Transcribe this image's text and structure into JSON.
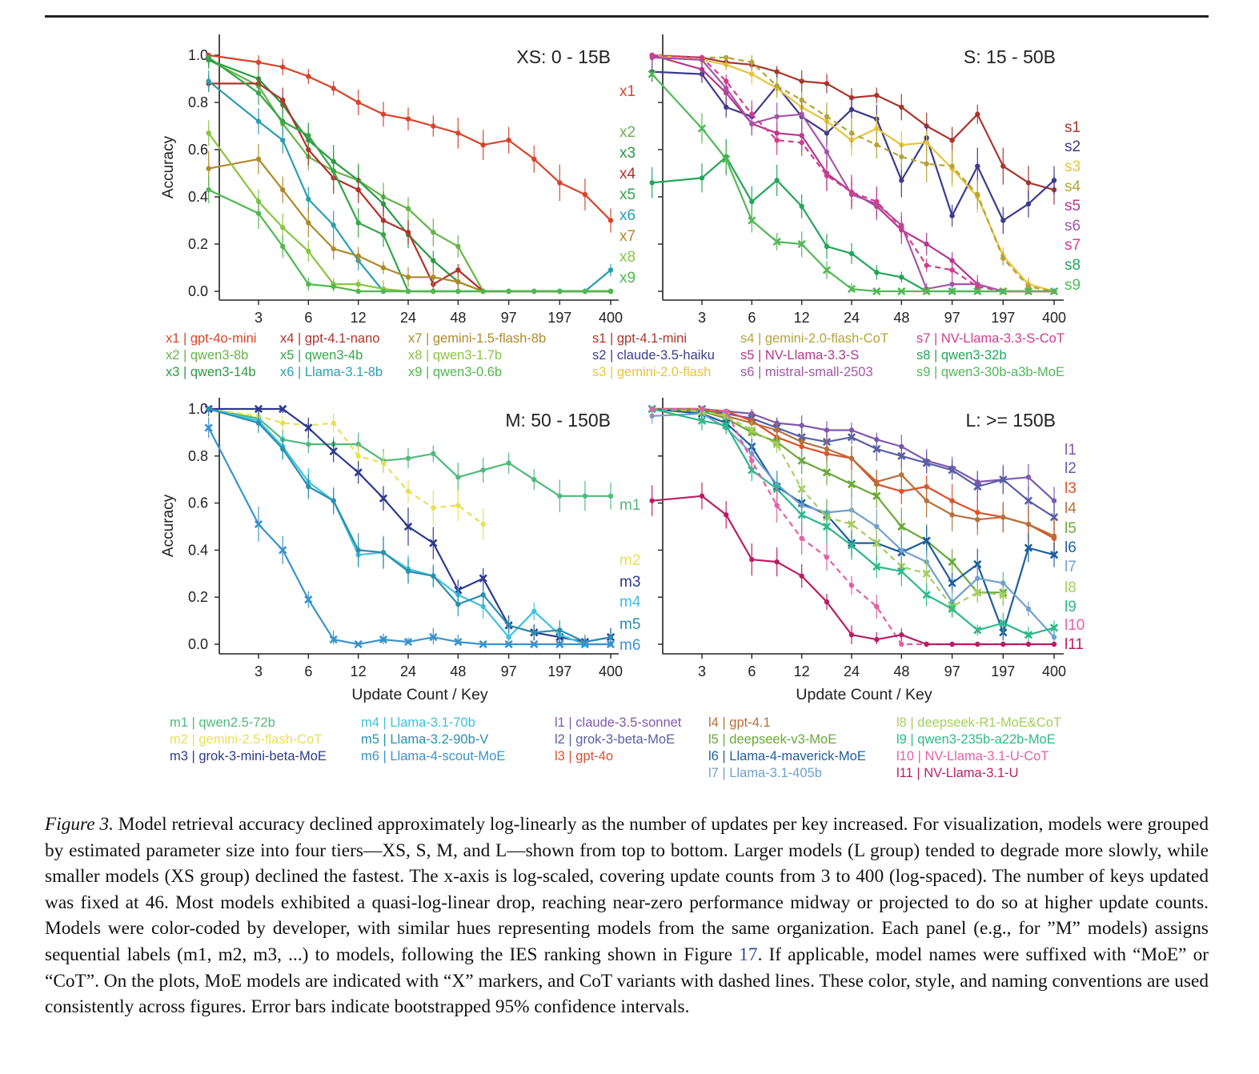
{
  "x_ticks": [
    "3",
    "6",
    "12",
    "24",
    "48",
    "97",
    "197",
    "400"
  ],
  "y_ticks": [
    "0.0",
    "0.2",
    "0.4",
    "0.6",
    "0.8",
    "1.0"
  ],
  "ylabel": "Accuracy",
  "xlabel": "Update Count / Key",
  "chart_data": [
    {
      "type": "line",
      "title": "XS: 0 - 15B",
      "x": [
        1.5,
        3,
        4.2,
        6,
        8.5,
        12,
        17,
        24,
        34,
        48,
        68,
        97,
        138,
        197,
        280,
        400
      ],
      "ylim": [
        0,
        1
      ],
      "x_scale": "log",
      "series": [
        {
          "label": "x1",
          "name": "gpt-4o-mini",
          "color": "#d9432b",
          "marker": "dot",
          "dashed": false,
          "values": [
            1.0,
            0.97,
            0.95,
            0.91,
            0.86,
            0.8,
            0.75,
            0.73,
            0.7,
            0.67,
            0.62,
            0.64,
            0.56,
            0.46,
            0.41,
            0.3
          ]
        },
        {
          "label": "x2",
          "name": "qwen3-8b",
          "color": "#67b34a",
          "marker": "dot",
          "dashed": false,
          "values": [
            0.98,
            0.87,
            0.71,
            0.57,
            0.51,
            0.47,
            0.4,
            0.35,
            0.25,
            0.19,
            0.0,
            0.0,
            0.0,
            0.0,
            0.0,
            0.0
          ]
        },
        {
          "label": "x3",
          "name": "qwen3-14b",
          "color": "#2a9a43",
          "marker": "dot",
          "dashed": false,
          "values": [
            0.98,
            0.9,
            0.79,
            0.64,
            0.55,
            0.47,
            0.37,
            0.24,
            0.13,
            0.04,
            0.0,
            0.0,
            0.0,
            0.0,
            0.0,
            0.0
          ]
        },
        {
          "label": "x4",
          "name": "gpt-4.1-nano",
          "color": "#b2312b",
          "marker": "dot",
          "dashed": false,
          "values": [
            0.88,
            0.88,
            0.81,
            0.6,
            0.48,
            0.43,
            0.3,
            0.25,
            0.03,
            0.09,
            0.0,
            0.0,
            0.0,
            0.0,
            0.0,
            0.0
          ]
        },
        {
          "label": "x5",
          "name": "qwen3-4b",
          "color": "#36a64a",
          "marker": "dot",
          "dashed": false,
          "values": [
            0.99,
            0.84,
            0.72,
            0.66,
            0.51,
            0.29,
            0.24,
            0.0,
            0.0,
            0.0,
            0.0,
            0.0,
            0.0,
            0.0,
            0.0,
            0.0
          ]
        },
        {
          "label": "x6",
          "name": "Llama-3.1-8b",
          "color": "#2a9fb0",
          "marker": "dot",
          "dashed": false,
          "values": [
            0.89,
            0.72,
            0.64,
            0.39,
            0.28,
            0.13,
            0.0,
            0.0,
            0.0,
            0.0,
            0.0,
            0.0,
            0.0,
            0.0,
            0.0,
            0.09
          ]
        },
        {
          "label": "x7",
          "name": "gemini-1.5-flash-8b",
          "color": "#b08a2a",
          "marker": "dot",
          "dashed": false,
          "values": [
            0.52,
            0.56,
            0.43,
            0.29,
            0.18,
            0.15,
            0.1,
            0.06,
            0.06,
            0.04,
            0.0,
            0.0,
            0.0,
            0.0,
            0.0,
            0.0
          ]
        },
        {
          "label": "x8",
          "name": "qwen3-1.7b",
          "color": "#88c542",
          "marker": "dot",
          "dashed": false,
          "values": [
            0.67,
            0.38,
            0.27,
            0.17,
            0.03,
            0.03,
            0.01,
            0.0,
            0.0,
            0.0,
            0.0,
            0.0,
            0.0,
            0.0,
            0.0,
            0.0
          ]
        },
        {
          "label": "x9",
          "name": "qwen3-0.6b",
          "color": "#4fb84e",
          "marker": "dot",
          "dashed": false,
          "values": [
            0.43,
            0.33,
            0.19,
            0.03,
            0.02,
            0.0,
            0.0,
            0.0,
            0.0,
            0.0,
            0.0,
            0.0,
            0.0,
            0.0,
            0.0,
            0.0
          ]
        }
      ]
    },
    {
      "type": "line",
      "title": "S: 15 - 50B",
      "x": [
        1.5,
        3,
        4.2,
        6,
        8.5,
        12,
        17,
        24,
        34,
        48,
        68,
        97,
        138,
        197,
        280,
        400
      ],
      "ylim": [
        0,
        1
      ],
      "x_scale": "log",
      "series": [
        {
          "label": "s1",
          "name": "gpt-4.1-mini",
          "color": "#a8362b",
          "marker": "dot",
          "dashed": false,
          "values": [
            1.0,
            0.99,
            0.97,
            0.96,
            0.93,
            0.89,
            0.88,
            0.82,
            0.83,
            0.78,
            0.7,
            0.64,
            0.75,
            0.53,
            0.46,
            0.43
          ]
        },
        {
          "label": "s2",
          "name": "claude-3.5-haiku",
          "color": "#3d3b8e",
          "marker": "dot",
          "dashed": false,
          "values": [
            0.93,
            0.92,
            0.78,
            0.74,
            0.87,
            0.74,
            0.67,
            0.77,
            0.73,
            0.47,
            0.65,
            0.32,
            0.53,
            0.3,
            0.37,
            0.47
          ]
        },
        {
          "label": "s3",
          "name": "gemini-2.0-flash",
          "color": "#e8c43a",
          "marker": "dot",
          "dashed": false,
          "values": [
            1.0,
            0.98,
            0.96,
            0.92,
            0.86,
            0.78,
            0.72,
            0.64,
            0.69,
            0.62,
            0.63,
            0.52,
            0.4,
            0.15,
            0.03,
            0.0
          ]
        },
        {
          "label": "s4",
          "name": "gemini-2.0-flash-CoT",
          "color": "#b5a33a",
          "marker": "dot",
          "dashed": true,
          "values": [
            1.0,
            0.99,
            0.99,
            0.97,
            0.87,
            0.81,
            0.74,
            0.67,
            0.62,
            0.57,
            0.54,
            0.53,
            0.41,
            0.14,
            0.02,
            0.0
          ]
        },
        {
          "label": "s5",
          "name": "NV-Llama-3.3-S",
          "color": "#b5368f",
          "marker": "dot",
          "dashed": false,
          "values": [
            1.0,
            0.94,
            0.84,
            0.71,
            0.67,
            0.66,
            0.5,
            0.42,
            0.36,
            0.26,
            0.2,
            0.13,
            0.03,
            0.0,
            0.0,
            0.0
          ]
        },
        {
          "label": "s6",
          "name": "mistral-small-2503",
          "color": "#a555a8",
          "marker": "dot",
          "dashed": false,
          "values": [
            0.99,
            0.98,
            0.86,
            0.71,
            0.74,
            0.75,
            0.59,
            0.41,
            0.37,
            0.28,
            0.01,
            0.03,
            0.03,
            0.0,
            0.0,
            0.0
          ]
        },
        {
          "label": "s7",
          "name": "NV-Llama-3.3-S-CoT",
          "color": "#cf3e8e",
          "marker": "dot",
          "dashed": true,
          "values": [
            1.0,
            0.99,
            0.89,
            0.75,
            0.64,
            0.63,
            0.49,
            0.42,
            0.38,
            0.27,
            0.11,
            0.09,
            0.02,
            0.0,
            0.0,
            0.0
          ]
        },
        {
          "label": "s8",
          "name": "qwen3-32b",
          "color": "#23a55a",
          "marker": "dot",
          "dashed": false,
          "values": [
            0.46,
            0.48,
            0.57,
            0.38,
            0.47,
            0.36,
            0.19,
            0.16,
            0.08,
            0.06,
            0.0,
            0.0,
            0.0,
            0.0,
            0.0,
            0.0
          ]
        },
        {
          "label": "s9",
          "name": "qwen3-30b-a3b-MoE",
          "color": "#52b957",
          "marker": "x",
          "dashed": false,
          "values": [
            0.92,
            0.69,
            0.56,
            0.3,
            0.21,
            0.2,
            0.09,
            0.01,
            0.0,
            0.0,
            0.0,
            0.0,
            0.0,
            0.0,
            0.0,
            0.0
          ]
        }
      ]
    },
    {
      "type": "line",
      "title": "M: 50 - 150B",
      "x": [
        1.5,
        3,
        4.2,
        6,
        8.5,
        12,
        17,
        24,
        34,
        48,
        68,
        97,
        138,
        197,
        280,
        400
      ],
      "ylim": [
        0,
        1
      ],
      "x_scale": "log",
      "series": [
        {
          "label": "m1",
          "name": "qwen2.5-72b",
          "color": "#4fba7c",
          "marker": "dot",
          "dashed": false,
          "values": [
            1.0,
            0.96,
            0.87,
            0.85,
            0.85,
            0.85,
            0.78,
            0.79,
            0.81,
            0.71,
            0.74,
            0.77,
            0.7,
            0.63,
            0.63,
            0.63
          ]
        },
        {
          "label": "m2",
          "name": "gemini-2.5-flash-CoT",
          "color": "#e9df56",
          "marker": "dot",
          "dashed": true,
          "values": [
            1.0,
            0.97,
            0.94,
            0.93,
            0.94,
            0.8,
            0.77,
            0.65,
            0.58,
            0.59,
            0.51,
            null,
            null,
            null,
            null,
            null
          ]
        },
        {
          "label": "m3",
          "name": "grok-3-mini-beta-MoE",
          "color": "#2c3a8f",
          "marker": "x",
          "dashed": false,
          "values": [
            1.0,
            1.0,
            1.0,
            0.92,
            0.82,
            0.73,
            0.62,
            0.5,
            0.43,
            0.23,
            0.28,
            0.08,
            0.05,
            0.03,
            0.01,
            0.03
          ]
        },
        {
          "label": "m4",
          "name": "Llama-3.1-70b",
          "color": "#3ec2dd",
          "marker": "dot",
          "dashed": false,
          "values": [
            1.0,
            0.95,
            0.84,
            0.69,
            0.61,
            0.38,
            0.39,
            0.32,
            0.29,
            0.21,
            0.16,
            0.03,
            0.14,
            0.04,
            0.0,
            0.0
          ]
        },
        {
          "label": "m5",
          "name": "Llama-3.2-90b-V",
          "color": "#2a8fb0",
          "marker": "dot",
          "dashed": false,
          "values": [
            1.0,
            0.94,
            0.83,
            0.67,
            0.61,
            0.4,
            0.39,
            0.31,
            0.29,
            0.17,
            0.21,
            0.08,
            0.05,
            0.06,
            0.01,
            0.03
          ]
        },
        {
          "label": "m6",
          "name": "Llama-4-scout-MoE",
          "color": "#3a93cc",
          "marker": "x",
          "dashed": false,
          "values": [
            0.92,
            0.51,
            0.4,
            0.19,
            0.02,
            0.0,
            0.02,
            0.01,
            0.03,
            0.01,
            0.0,
            0.0,
            0.0,
            0.0,
            0.0,
            0.0
          ]
        }
      ]
    },
    {
      "type": "line",
      "title": "L: >= 150B",
      "x": [
        1.5,
        3,
        4.2,
        6,
        8.5,
        12,
        17,
        24,
        34,
        48,
        68,
        97,
        138,
        197,
        280,
        400
      ],
      "ylim": [
        0,
        1
      ],
      "x_scale": "log",
      "series": [
        {
          "label": "l1",
          "name": "claude-3.5-sonnet",
          "color": "#8059ad",
          "marker": "dot",
          "dashed": false,
          "values": [
            1.0,
            1.0,
            0.99,
            0.98,
            0.94,
            0.93,
            0.91,
            0.91,
            0.87,
            0.84,
            0.78,
            0.75,
            0.69,
            0.7,
            0.71,
            0.61
          ]
        },
        {
          "label": "l2",
          "name": "grok-3-beta-MoE",
          "color": "#5a5ea8",
          "marker": "x",
          "dashed": false,
          "values": [
            1.0,
            1.0,
            0.98,
            0.96,
            0.92,
            0.88,
            0.86,
            0.88,
            0.83,
            0.8,
            0.77,
            0.74,
            0.67,
            0.7,
            0.61,
            0.54
          ]
        },
        {
          "label": "l3",
          "name": "gpt-4o",
          "color": "#e04e2a",
          "marker": "dot",
          "dashed": false,
          "values": [
            1.0,
            0.99,
            0.99,
            0.95,
            0.88,
            0.84,
            0.81,
            0.79,
            0.68,
            0.65,
            0.67,
            0.61,
            0.56,
            0.54,
            0.51,
            0.45
          ]
        },
        {
          "label": "l4",
          "name": "gpt-4.1",
          "color": "#b7703b",
          "marker": "dot",
          "dashed": false,
          "values": [
            1.0,
            1.0,
            0.97,
            0.94,
            0.91,
            0.86,
            0.83,
            0.79,
            0.69,
            0.72,
            0.61,
            0.55,
            0.53,
            0.54,
            0.51,
            0.46
          ]
        },
        {
          "label": "l5",
          "name": "deepseek-v3-MoE",
          "color": "#6aa83a",
          "marker": "x",
          "dashed": false,
          "values": [
            1.0,
            0.99,
            0.96,
            0.9,
            0.86,
            0.78,
            0.73,
            0.68,
            0.63,
            0.5,
            0.44,
            0.35,
            0.22,
            0.22,
            null,
            null
          ]
        },
        {
          "label": "l6",
          "name": "Llama-4-maverick-MoE",
          "color": "#1f5e9e",
          "marker": "x",
          "dashed": false,
          "values": [
            1.0,
            0.98,
            0.94,
            0.84,
            0.67,
            0.6,
            0.55,
            0.43,
            0.43,
            0.39,
            0.44,
            0.26,
            0.34,
            0.05,
            0.41,
            0.38
          ]
        },
        {
          "label": "l7",
          "name": "Llama-3.1-405b",
          "color": "#6fa0cf",
          "marker": "dot",
          "dashed": false,
          "values": [
            0.97,
            0.98,
            0.92,
            0.81,
            0.68,
            0.59,
            0.56,
            0.57,
            0.5,
            0.4,
            0.35,
            0.18,
            0.28,
            0.26,
            0.15,
            0.03
          ]
        },
        {
          "label": "l8",
          "name": "deepseek-R1-MoE&CoT",
          "color": "#a3cf5e",
          "marker": "x",
          "dashed": true,
          "values": [
            1.0,
            0.99,
            0.97,
            0.91,
            0.85,
            0.66,
            0.54,
            0.51,
            0.43,
            0.33,
            0.3,
            0.16,
            0.22,
            0.21,
            null,
            null
          ]
        },
        {
          "label": "l9",
          "name": "qwen3-235b-a22b-MoE",
          "color": "#2fb88b",
          "marker": "x",
          "dashed": false,
          "values": [
            1.0,
            0.95,
            0.93,
            0.74,
            0.66,
            0.55,
            0.5,
            0.42,
            0.33,
            0.31,
            0.21,
            0.15,
            0.06,
            0.09,
            0.04,
            0.07
          ]
        },
        {
          "label": "l10",
          "name": "NV-Llama-3.1-U-CoT",
          "color": "#e35fa8",
          "marker": "dot",
          "dashed": true,
          "values": [
            1.0,
            1.0,
            0.99,
            0.78,
            0.59,
            0.45,
            0.37,
            0.25,
            0.16,
            0.0,
            0.0,
            0.0,
            0.0,
            0.0,
            0.0,
            0.0
          ]
        },
        {
          "label": "l11",
          "name": "NV-Llama-3.1-U",
          "color": "#b81e64",
          "marker": "dot",
          "dashed": false,
          "values": [
            0.61,
            0.63,
            0.55,
            0.36,
            0.35,
            0.29,
            0.18,
            0.04,
            0.02,
            0.04,
            0.0,
            0.0,
            0.0,
            0.0,
            0.0,
            0.0
          ]
        }
      ]
    }
  ],
  "caption": {
    "label": "Figure 3.",
    "text_before_ref": "Model retrieval accuracy declined approximately log-linearly as the number of updates per key increased. For visualization, models were grouped by estimated parameter size into four tiers—XS, S, M, and L—shown from top to bottom. Larger models (L group) tended to degrade more slowly, while smaller models (XS group) declined the fastest. The x-axis is log-scaled, covering update counts from 3 to 400 (log-spaced). The number of keys updated was fixed at 46. Most models exhibited a quasi-log-linear drop, reaching near-zero performance midway or projected to do so at higher update counts. Models were color-coded by developer, with similar hues representing models from the same organization. Each panel (e.g., for ”M” models) assigns sequential labels (m1, m2, m3, ...) to models, following the IES ranking shown in Figure",
    "ref": "17",
    "text_after_ref": ". If applicable, model names were suffixed with “MoE” or “CoT”. On the plots, MoE models are indicated with “X” markers, and CoT variants with dashed lines. These color, style, and naming conventions are used consistently across figures. Error bars indicate bootstrapped 95% confidence intervals."
  }
}
